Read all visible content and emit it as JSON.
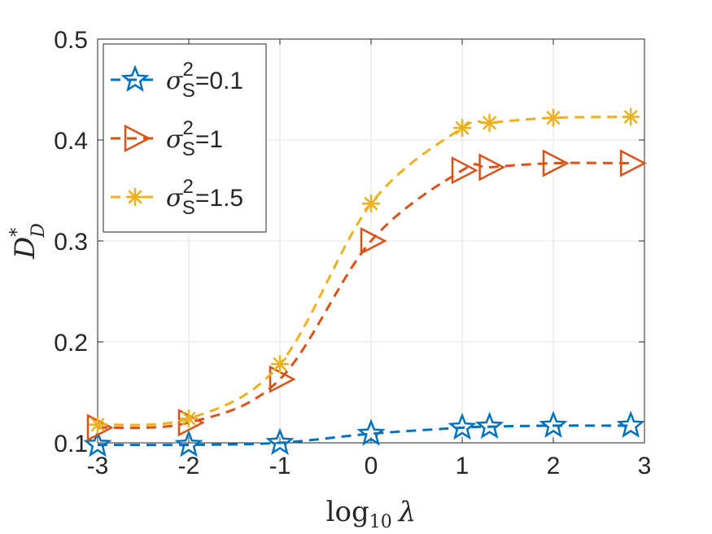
{
  "chart_data": {
    "type": "line",
    "title": "",
    "xlabel": "log10 λ",
    "xlabel_parts": {
      "main": "log",
      "sub": "10",
      "var": "λ"
    },
    "ylabel": "D*_D",
    "ylabel_parts": {
      "main": "D",
      "sup": "*",
      "sub": "D"
    },
    "xlim": [
      -3,
      3
    ],
    "ylim": [
      0.1,
      0.5
    ],
    "xticks": [
      -3,
      -2,
      -1,
      0,
      1,
      2,
      3
    ],
    "xtick_labels": [
      "-3",
      "-2",
      "-1",
      "0",
      "1",
      "2",
      "3"
    ],
    "yticks": [
      0.1,
      0.2,
      0.3,
      0.4,
      0.5
    ],
    "ytick_labels": [
      "0.1",
      "0.2",
      "0.3",
      "0.4",
      "0.5"
    ],
    "grid": true,
    "legend_position": "top-left",
    "x": [
      -3,
      -2,
      -1,
      0,
      1,
      1.3,
      2,
      2.85
    ],
    "series": [
      {
        "name": "σS²=0.1",
        "label_parts": {
          "sym": "σ",
          "sup": "2",
          "sub": "S",
          "rest": "=0.1"
        },
        "marker": "star",
        "color": "#0072BD",
        "values": [
          0.098,
          0.098,
          0.1,
          0.109,
          0.115,
          0.116,
          0.117,
          0.117
        ]
      },
      {
        "name": "σS²=1",
        "label_parts": {
          "sym": "σ",
          "sup": "2",
          "sub": "S",
          "rest": "=1"
        },
        "marker": "triangle-right",
        "color": "#D95319",
        "values": [
          0.115,
          0.12,
          0.163,
          0.3,
          0.37,
          0.373,
          0.377,
          0.377
        ]
      },
      {
        "name": "σS²=1.5",
        "label_parts": {
          "sym": "σ",
          "sup": "2",
          "sub": "S",
          "rest": "=1.5"
        },
        "marker": "asterisk",
        "color": "#EDB120",
        "values": [
          0.118,
          0.124,
          0.178,
          0.337,
          0.412,
          0.417,
          0.422,
          0.423
        ]
      }
    ]
  }
}
